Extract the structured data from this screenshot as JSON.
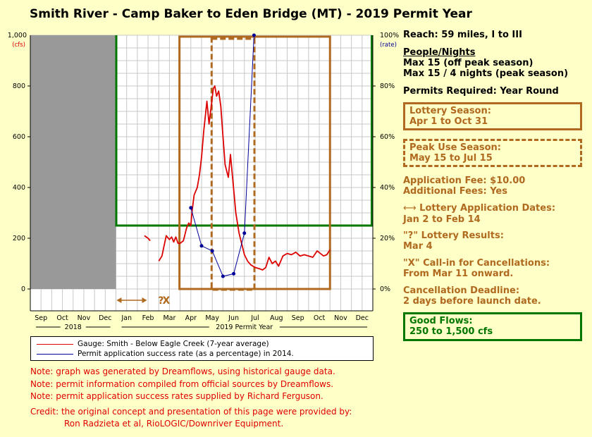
{
  "title": "Smith River - Camp Baker to Eden Bridge (MT) - 2019 Permit Year",
  "info": {
    "reach": "Reach: 59 miles, I to III",
    "people_title": "People/Nights",
    "people_line1": "Max 15 (off peak season)",
    "people_line2": "Max 15 / 4 nights (peak season)",
    "permits_required": "Permits Required: Year Round",
    "lottery_season_title": "Lottery Season:",
    "lottery_season_dates": "Apr 1 to Oct 31",
    "peak_title": "Peak Use Season:",
    "peak_dates": "May 15 to Jul 15",
    "app_fee": "Application Fee: $10.00",
    "additional_fees": "Additional Fees: Yes",
    "lottery_app_title": "Lottery Application Dates:",
    "lottery_app_dates": "Jan 2 to Feb 14",
    "lottery_results_title": "\"?\" Lottery Results:",
    "lottery_results_date": "Mar 4",
    "callin_title": "\"X\" Call-in for Cancellations:",
    "callin_date": "From Mar 11 onward.",
    "cancel_title": "Cancellation Deadline:",
    "cancel_detail": "2 days before launch date.",
    "good_flows_title": "Good Flows:",
    "good_flows_range": "250 to 1,500 cfs"
  },
  "legend": {
    "gauge": "Gauge: Smith - Below Eagle Creek (7-year average)",
    "success": "Permit application success rate (as a percentage) in 2014."
  },
  "notes": [
    "Note: graph was generated by Dreamflows, using historical gauge data.",
    "Note: permit information compiled from official sources by Dreamflows.",
    "Note: permit application success rates supplied by Richard Ferguson."
  ],
  "credit_line1": "Credit: the original concept and presentation of this page were provided by:",
  "credit_line2": "Ron Radzieta et al, RioLOGIC/Downriver Equipment.",
  "chart_data": {
    "type": "line",
    "months": [
      "Sep",
      "Oct",
      "Nov",
      "Dec",
      "Jan",
      "Feb",
      "Mar",
      "Apr",
      "May",
      "Jun",
      "Jul",
      "Aug",
      "Sep",
      "Oct",
      "Nov",
      "Dec"
    ],
    "year_labels": [
      "2018",
      "2019 Permit Year"
    ],
    "left_axis": {
      "ticks": [
        0,
        200,
        400,
        600,
        800
      ],
      "top_label": "1,000",
      "unit": "(cfs)",
      "range": [
        0,
        1000
      ]
    },
    "right_axis": {
      "ticks": [
        "0%",
        "20%",
        "40%",
        "60%",
        "80%"
      ],
      "top_label": "100%",
      "unit": "(rate)",
      "range": [
        0,
        100
      ]
    },
    "markers": {
      "question": "?",
      "x": "X"
    },
    "colors": {
      "gauge": "#dd0000",
      "success": "#000099",
      "brown": "#b06a1f",
      "green": "#007700",
      "gray": "#999999"
    },
    "gauge_series": {
      "name": "Gauge: Smith - Below Eagle Creek (7-year average)",
      "segments": [
        [
          [
            5.33,
            210
          ],
          [
            5.5,
            200
          ],
          [
            5.6,
            190
          ]
        ],
        [
          [
            6.0,
            110
          ],
          [
            6.15,
            130
          ],
          [
            6.25,
            170
          ],
          [
            6.35,
            210
          ],
          [
            6.5,
            195
          ],
          [
            6.6,
            205
          ],
          [
            6.7,
            185
          ],
          [
            6.8,
            205
          ],
          [
            6.9,
            180
          ],
          [
            7.0,
            180
          ],
          [
            7.15,
            190
          ],
          [
            7.3,
            240
          ],
          [
            7.4,
            260
          ],
          [
            7.5,
            250
          ],
          [
            7.55,
            300
          ],
          [
            7.65,
            370
          ],
          [
            7.8,
            400
          ],
          [
            7.9,
            450
          ],
          [
            8.0,
            520
          ],
          [
            8.1,
            620
          ],
          [
            8.25,
            740
          ],
          [
            8.35,
            650
          ],
          [
            8.45,
            720
          ],
          [
            8.55,
            790
          ],
          [
            8.62,
            800
          ],
          [
            8.7,
            760
          ],
          [
            8.8,
            780
          ],
          [
            8.9,
            720
          ],
          [
            9.0,
            600
          ],
          [
            9.1,
            490
          ],
          [
            9.25,
            440
          ],
          [
            9.35,
            530
          ],
          [
            9.45,
            440
          ],
          [
            9.6,
            300
          ],
          [
            9.75,
            220
          ],
          [
            9.9,
            170
          ],
          [
            10.0,
            135
          ],
          [
            10.15,
            110
          ],
          [
            10.3,
            95
          ],
          [
            10.5,
            85
          ],
          [
            10.7,
            80
          ],
          [
            10.85,
            75
          ],
          [
            11.0,
            85
          ],
          [
            11.15,
            125
          ],
          [
            11.3,
            100
          ],
          [
            11.45,
            110
          ],
          [
            11.6,
            90
          ],
          [
            11.8,
            130
          ],
          [
            12.0,
            140
          ],
          [
            12.2,
            135
          ],
          [
            12.4,
            145
          ],
          [
            12.6,
            130
          ],
          [
            12.8,
            135
          ],
          [
            13.0,
            130
          ],
          [
            13.2,
            125
          ],
          [
            13.4,
            150
          ],
          [
            13.55,
            140
          ],
          [
            13.7,
            130
          ],
          [
            13.85,
            135
          ],
          [
            14.0,
            155
          ]
        ]
      ]
    },
    "success_series": {
      "name": "Permit application success rate (as a percentage) in 2014.",
      "points": [
        [
          7.5,
          32
        ],
        [
          8.0,
          17
        ],
        [
          8.5,
          15
        ],
        [
          9.0,
          5
        ],
        [
          9.5,
          6
        ],
        [
          10.0,
          22
        ],
        [
          10.45,
          100
        ]
      ]
    },
    "shaded_region": {
      "from_month": 0,
      "to_month": 4
    },
    "lottery_season": {
      "from_month": 7,
      "to_month": 14
    },
    "peak_season": {
      "from_month": 8.47,
      "to_month": 10.47
    },
    "good_flows": {
      "from_month": 4,
      "to_month": 16,
      "min_cfs": 250,
      "max_cfs": 1500
    },
    "lottery_application": {
      "from_month": 4.03,
      "to_month": 5.45
    },
    "lottery_results_month": 6.1,
    "callin_month": 6.35
  }
}
